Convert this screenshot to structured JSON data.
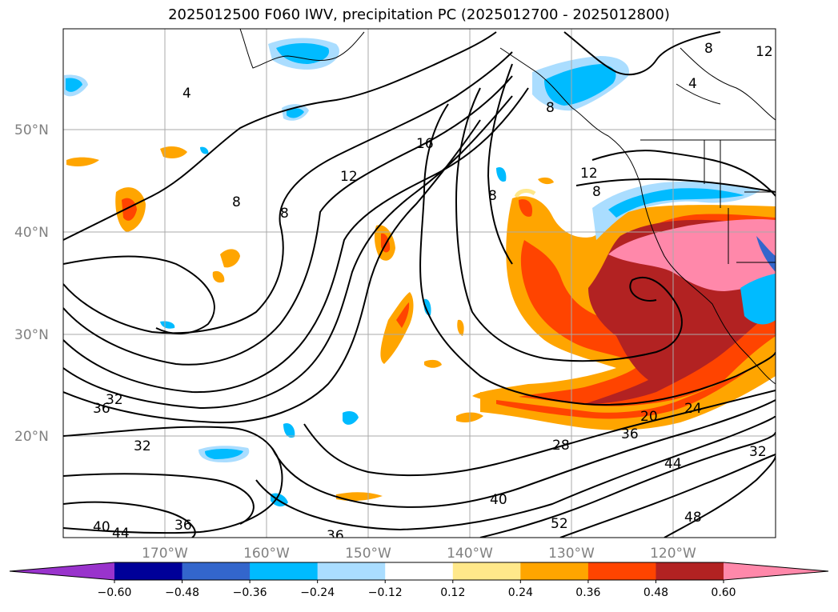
{
  "title": "2025012500 F060 IWV, precipitation PC (2025012700 - 2025012800)",
  "lat_labels": [
    "50°N",
    "40°N",
    "30°N",
    "20°N"
  ],
  "lon_labels": [
    "170°W",
    "160°W",
    "150°W",
    "140°W",
    "130°W",
    "120°W"
  ],
  "colorbar": {
    "ticks": [
      "−0.60",
      "−0.48",
      "−0.36",
      "−0.24",
      "−0.12",
      "0.12",
      "0.24",
      "0.36",
      "0.48",
      "0.60"
    ],
    "colors": [
      "#9933cc",
      "#000099",
      "#3366cc",
      "#00bbff",
      "#aaddff",
      "#ffffff",
      "#ffe88a",
      "#ffa500",
      "#ff4400",
      "#b22222",
      "#ff88aa"
    ]
  },
  "contour_labels": [
    "4",
    "8",
    "12",
    "16",
    "8",
    "12",
    "8",
    "8",
    "8",
    "4",
    "12",
    "8",
    "32",
    "36",
    "32",
    "36",
    "40",
    "44",
    "36",
    "28",
    "40",
    "36",
    "20",
    "24",
    "44",
    "52",
    "48",
    "32"
  ]
}
